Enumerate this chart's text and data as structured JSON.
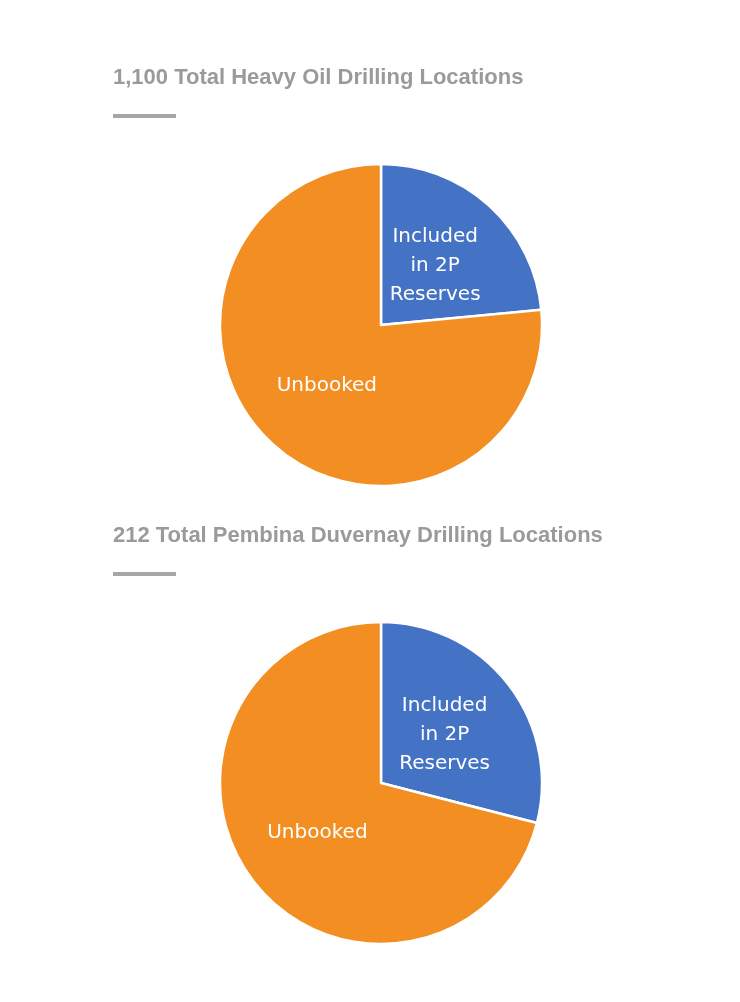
{
  "chart_data": [
    {
      "type": "pie",
      "title": "1,100 Total Heavy Oil Drilling Locations",
      "categories": [
        "Included in 2P Reserves",
        "Unbooked"
      ],
      "values": [
        23.5,
        76.5
      ],
      "colors": [
        "#4472c4",
        "#f28e22"
      ]
    },
    {
      "type": "pie",
      "title": "212 Total Pembina Duvernay Drilling Locations",
      "categories": [
        "Included in 2P Reserves",
        "Unbooked"
      ],
      "values": [
        29,
        71
      ],
      "colors": [
        "#4472c4",
        "#f28e22"
      ]
    }
  ]
}
